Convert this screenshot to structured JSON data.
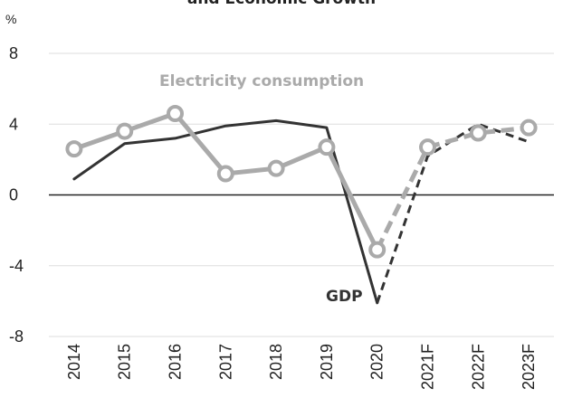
{
  "chart_data": {
    "type": "line",
    "title": "and Economic Growth",
    "ylabel": "%",
    "ylim": [
      -8,
      8
    ],
    "yticks": [
      -8,
      -4,
      0,
      4,
      8
    ],
    "categories": [
      "2014",
      "2015",
      "2016",
      "2017",
      "2018",
      "2019",
      "2020",
      "2021F",
      "2022F",
      "2023F"
    ],
    "grid": true,
    "legend": "none",
    "series": [
      {
        "name": "Electricity consumption",
        "color": "#aaaaaa",
        "marker": "circle",
        "values": [
          2.6,
          3.6,
          4.6,
          1.2,
          1.5,
          2.7,
          -3.1,
          2.7,
          3.5,
          3.8
        ],
        "forecast_from": "2020"
      },
      {
        "name": "GDP",
        "color": "#333333",
        "marker": "none",
        "values": [
          0.9,
          2.9,
          3.2,
          3.9,
          4.2,
          3.8,
          -6.1,
          2.2,
          4.0,
          3.0
        ],
        "forecast_from": "2020"
      }
    ]
  }
}
